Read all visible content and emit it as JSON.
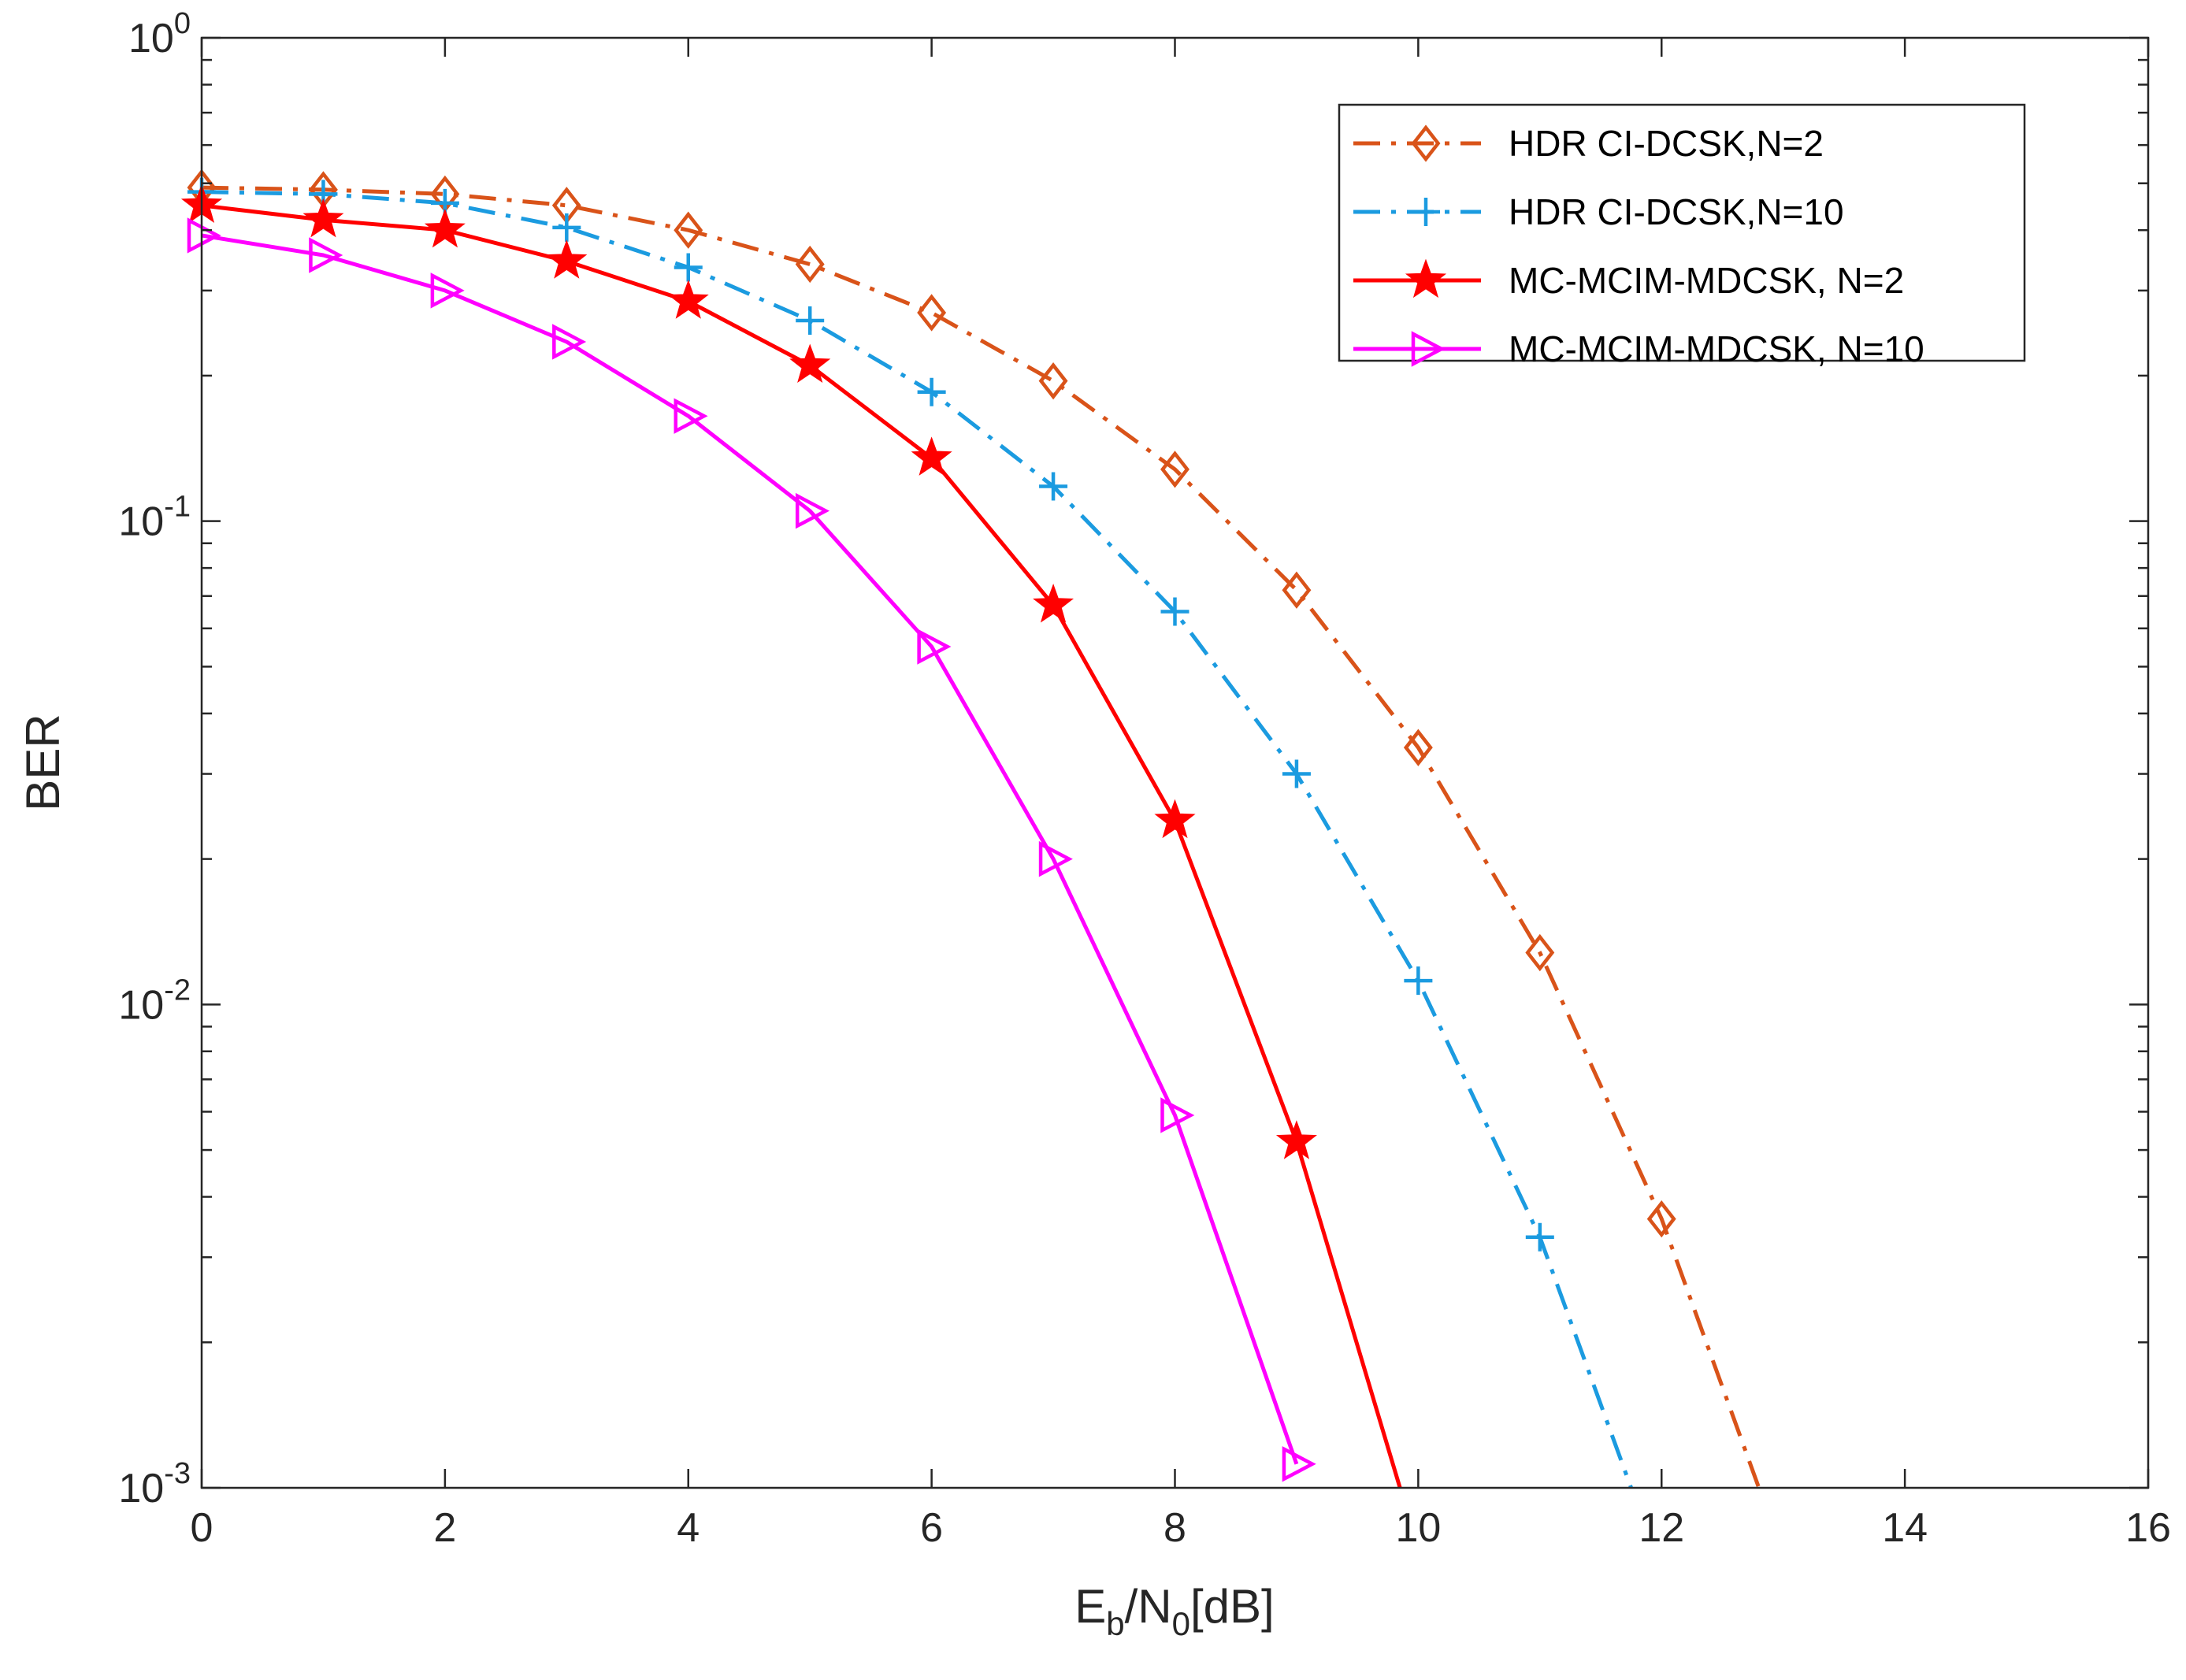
{
  "chart_data": {
    "type": "line",
    "title": "",
    "xlabel": {
      "base": "E",
      "sub1": "b",
      "mid": "/N",
      "sub2": "0",
      "tail": "[dB]"
    },
    "ylabel": "BER",
    "xlim": [
      0,
      16
    ],
    "ylim": [
      0.001,
      1
    ],
    "yscale": "log",
    "grid": false,
    "legend_position": "top-right",
    "x_ticks": [
      0,
      2,
      4,
      6,
      8,
      10,
      12,
      14,
      16
    ],
    "x_tick_labels": [
      "0",
      "2",
      "4",
      "6",
      "8",
      "10",
      "12",
      "14",
      "16"
    ],
    "y_ticks": [
      {
        "value": 1,
        "base": "10",
        "exp": "0"
      },
      {
        "value": 0.1,
        "base": "10",
        "exp": "-1"
      },
      {
        "value": 0.01,
        "base": "10",
        "exp": "-2"
      },
      {
        "value": 0.001,
        "base": "10",
        "exp": "-3"
      }
    ],
    "series": [
      {
        "name": "HDR CI-DCSK,N=2",
        "color": "#d95319",
        "line_style": "dashdot",
        "marker": "diamond",
        "x": [
          0,
          1,
          2,
          3,
          4,
          5,
          6,
          7,
          8,
          9,
          10,
          11,
          12,
          12.8
        ],
        "y": [
          0.49,
          0.485,
          0.475,
          0.45,
          0.4,
          0.34,
          0.27,
          0.195,
          0.128,
          0.072,
          0.034,
          0.0128,
          0.0036,
          0.001
        ],
        "marker_count": 13
      },
      {
        "name": "HDR CI-DCSK,N=10",
        "color": "#1b9be0",
        "line_style": "dashdot",
        "marker": "plus",
        "x": [
          0,
          1,
          2,
          3,
          4,
          5,
          6,
          7,
          8,
          9,
          10,
          11,
          11.75
        ],
        "y": [
          0.48,
          0.475,
          0.455,
          0.405,
          0.335,
          0.26,
          0.185,
          0.118,
          0.065,
          0.03,
          0.0112,
          0.0033,
          0.001
        ],
        "marker_count": 12
      },
      {
        "name": "MC-MCIM-MDCSK, N=2",
        "color": "#ff0000",
        "line_style": "solid",
        "marker": "star",
        "x": [
          0,
          1,
          2,
          3,
          4,
          5,
          6,
          7,
          8,
          9,
          9.85
        ],
        "y": [
          0.45,
          0.42,
          0.4,
          0.345,
          0.285,
          0.21,
          0.135,
          0.067,
          0.024,
          0.0052,
          0.001
        ],
        "marker_count": 10
      },
      {
        "name": "MC-MCIM-MDCSK, N=10",
        "color": "#ff00ff",
        "line_style": "solid",
        "marker": "triangle-right",
        "x": [
          0,
          1,
          2,
          3,
          4,
          5,
          6,
          7,
          8,
          9
        ],
        "y": [
          0.39,
          0.355,
          0.3,
          0.235,
          0.165,
          0.105,
          0.055,
          0.02,
          0.0059,
          0.00112
        ],
        "marker_count": 10
      }
    ]
  }
}
